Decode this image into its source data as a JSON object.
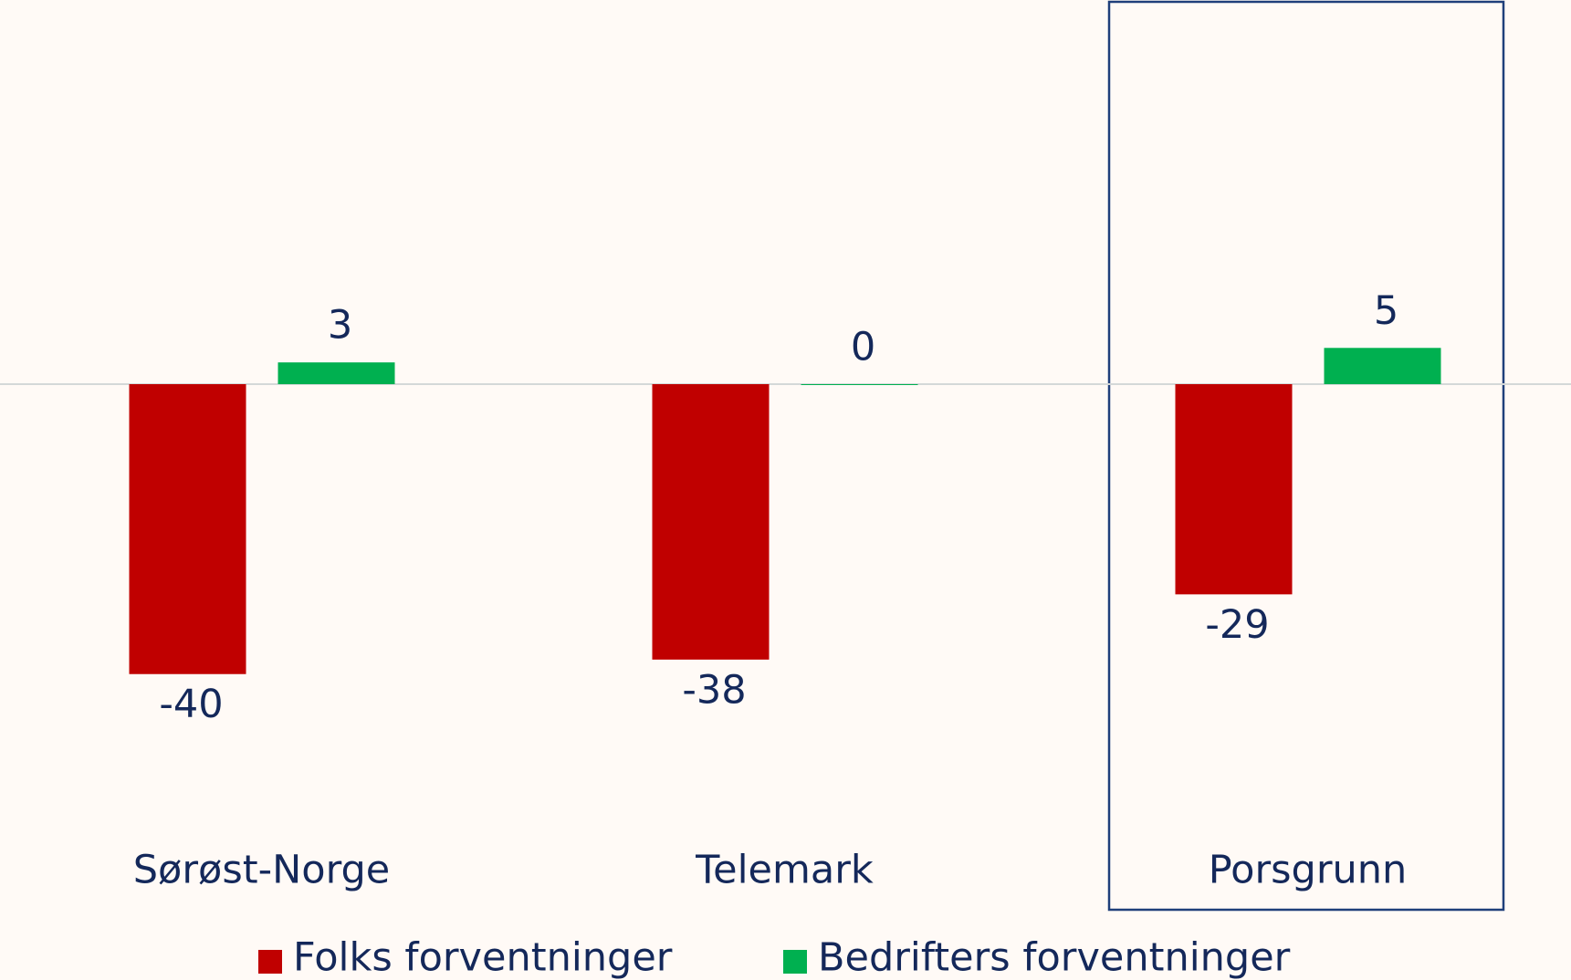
{
  "chart_data": {
    "type": "bar",
    "categories": [
      "Sørøst-Norge",
      "Telemark",
      "Porsgrunn"
    ],
    "series": [
      {
        "name": "Folks forventninger",
        "color": "#c00000",
        "values": [
          -40,
          -38,
          -29
        ]
      },
      {
        "name": "Bedrifters forventninger",
        "color": "#00b050",
        "values": [
          3,
          0,
          5
        ]
      }
    ],
    "ylim": [
      -53,
      53
    ]
  }
}
